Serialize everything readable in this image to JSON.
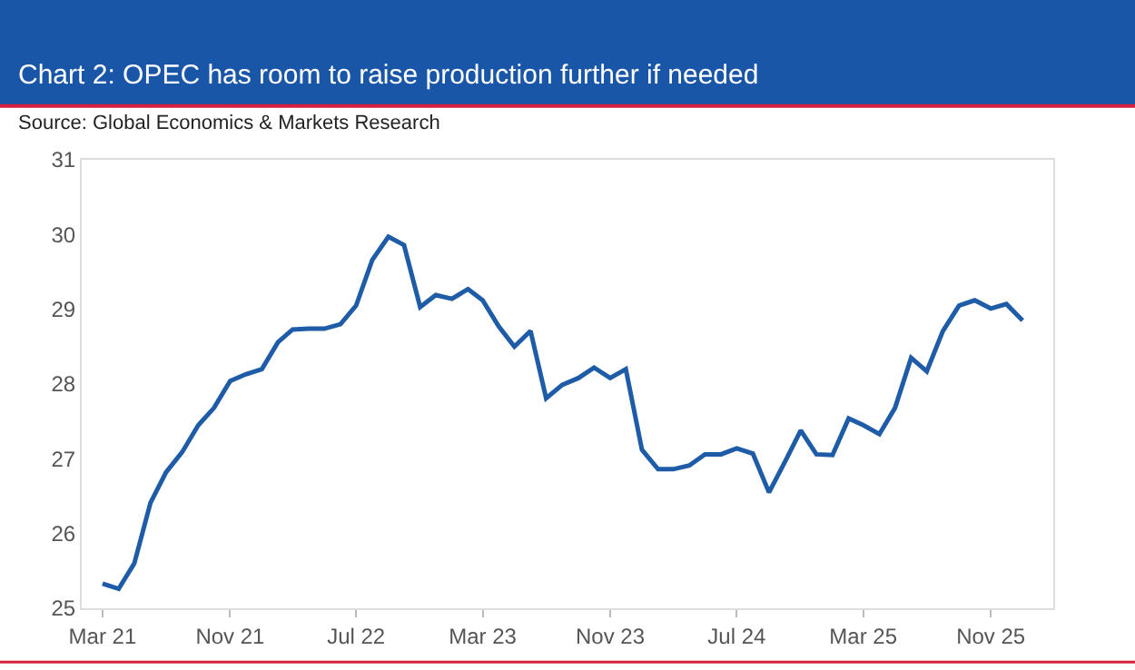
{
  "chart_data": {
    "type": "line",
    "title": "Chart 2: OPEC has room to raise production further if needed",
    "subtitle": "Source: Global Economics & Markets Research",
    "x": [
      "2021-03",
      "2021-04",
      "2021-05",
      "2021-06",
      "2021-07",
      "2021-08",
      "2021-09",
      "2021-10",
      "2021-11",
      "2021-12",
      "2022-01",
      "2022-02",
      "2022-03",
      "2022-04",
      "2022-05",
      "2022-06",
      "2022-07",
      "2022-08",
      "2022-09",
      "2022-10",
      "2022-11",
      "2022-12",
      "2023-01",
      "2023-02",
      "2023-03",
      "2023-04",
      "2023-05",
      "2023-06",
      "2023-07",
      "2023-08",
      "2023-09",
      "2023-10",
      "2023-11",
      "2023-12",
      "2024-01",
      "2024-02",
      "2024-03",
      "2024-04",
      "2024-05",
      "2024-06",
      "2024-07",
      "2024-08",
      "2024-09",
      "2024-10",
      "2024-11",
      "2024-12",
      "2025-01",
      "2025-02",
      "2025-03",
      "2025-04",
      "2025-05",
      "2025-06",
      "2025-07",
      "2025-08",
      "2025-09",
      "2025-10",
      "2025-11",
      "2025-12",
      "2026-01"
    ],
    "series": [
      {
        "color": "#1f5ca8",
        "values": [
          25.33,
          25.26,
          25.6,
          26.41,
          26.82,
          27.09,
          27.45,
          27.68,
          28.04,
          28.13,
          28.2,
          28.56,
          28.73,
          28.74,
          28.74,
          28.8,
          29.05,
          29.66,
          29.97,
          29.86,
          29.03,
          29.19,
          29.14,
          29.27,
          29.12,
          28.77,
          28.5,
          28.71,
          27.81,
          27.99,
          28.08,
          28.22,
          28.08,
          28.2,
          27.12,
          26.86,
          26.86,
          26.91,
          27.06,
          27.06,
          27.14,
          27.07,
          26.55,
          26.95,
          27.38,
          27.06,
          27.05,
          27.54,
          27.45,
          27.33,
          27.68,
          28.35,
          28.17,
          28.71,
          29.05,
          29.12,
          29.01,
          29.07,
          28.85
        ]
      }
    ],
    "xlim": [
      "2021-01-20",
      "2026-03-01"
    ],
    "ylim": [
      25,
      31
    ],
    "yticks": [
      25,
      26,
      27,
      28,
      29,
      30,
      31
    ],
    "xticks": [
      {
        "value": "2021-03",
        "label": "Mar 21"
      },
      {
        "value": "2021-11",
        "label": "Nov 21"
      },
      {
        "value": "2022-07",
        "label": "Jul 22"
      },
      {
        "value": "2023-03",
        "label": "Mar 23"
      },
      {
        "value": "2023-11",
        "label": "Nov 23"
      },
      {
        "value": "2024-07",
        "label": "Jul 24"
      },
      {
        "value": "2025-03",
        "label": "Mar 25"
      },
      {
        "value": "2025-11",
        "label": "Nov 25"
      }
    ],
    "marker": "none",
    "line_style": "solid"
  }
}
